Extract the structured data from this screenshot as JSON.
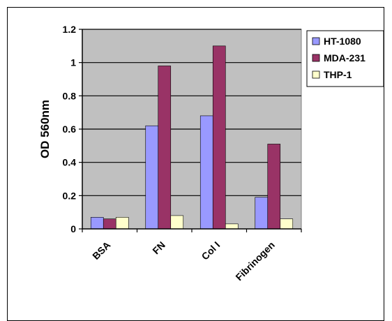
{
  "chart_data": {
    "type": "bar",
    "categories": [
      "BSA",
      "FN",
      "Col I",
      "Fibrinogen"
    ],
    "series": [
      {
        "name": "HT-1080",
        "values": [
          0.07,
          0.62,
          0.68,
          0.19
        ],
        "color": "#9999ff"
      },
      {
        "name": "MDA-231",
        "values": [
          0.06,
          0.98,
          1.1,
          0.51
        ],
        "color": "#993366"
      },
      {
        "name": "THP-1",
        "values": [
          0.07,
          0.08,
          0.03,
          0.06
        ],
        "color": "#ffffcc"
      }
    ],
    "title": "",
    "xlabel": "",
    "ylabel": "OD 560nm",
    "ylim": [
      0,
      1.2
    ],
    "yticks": [
      "0",
      "0.2",
      "0.4",
      "0.6",
      "0.8",
      "1",
      "1.2"
    ],
    "grid": true,
    "plot_background": "#c0c0c0",
    "legend_position": "right"
  }
}
